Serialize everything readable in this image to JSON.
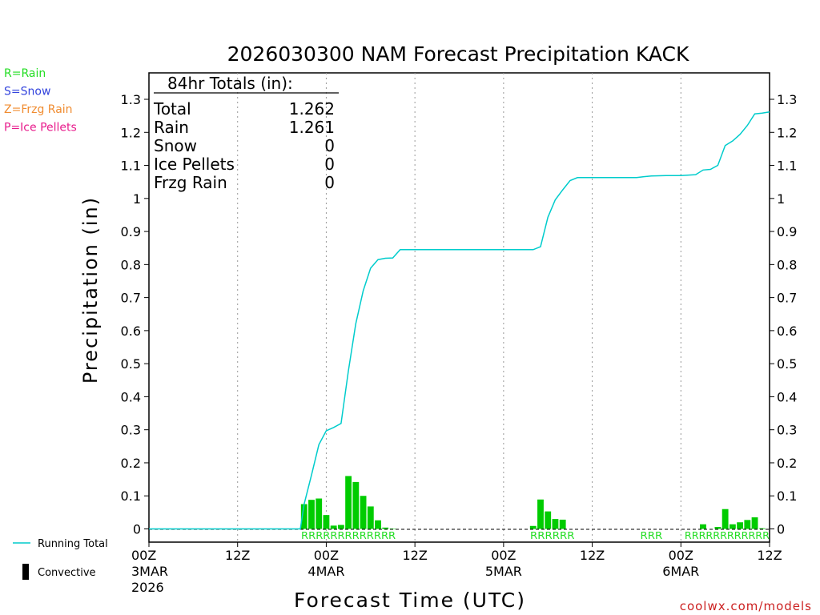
{
  "chart_data": {
    "type": "bar",
    "title": "2026030300 NAM Forecast Precipitation KACK",
    "xlabel": "Forecast Time (UTC)",
    "ylabel": "Precipitation (in)",
    "ylim": [
      -0.04,
      1.38
    ],
    "xlim_hours": [
      0,
      84
    ],
    "y_ticks": [
      "0",
      "0.1",
      "0.2",
      "0.3",
      "0.4",
      "0.5",
      "0.6",
      "0.7",
      "0.8",
      "0.9",
      "1",
      "1.1",
      "1.2",
      "1.3"
    ],
    "x_ticks": [
      {
        "hour": 0,
        "label": "00Z",
        "sub": "3MAR",
        "sub2": "2026"
      },
      {
        "hour": 12,
        "label": "12Z",
        "sub": "",
        "sub2": ""
      },
      {
        "hour": 24,
        "label": "00Z",
        "sub": "4MAR",
        "sub2": ""
      },
      {
        "hour": 36,
        "label": "12Z",
        "sub": "",
        "sub2": ""
      },
      {
        "hour": 48,
        "label": "00Z",
        "sub": "5MAR",
        "sub2": ""
      },
      {
        "hour": 60,
        "label": "12Z",
        "sub": "",
        "sub2": ""
      },
      {
        "hour": 72,
        "label": "00Z",
        "sub": "6MAR",
        "sub2": ""
      },
      {
        "hour": 84,
        "label": "12Z",
        "sub": "",
        "sub2": ""
      }
    ],
    "bar_width_hours": 0.85,
    "hourly_precip": {
      "hours": [
        21,
        22,
        23,
        24,
        25,
        26,
        27,
        28,
        29,
        30,
        31,
        32,
        33,
        52,
        53,
        54,
        55,
        56,
        75,
        77,
        78,
        79,
        80,
        81,
        82,
        83
      ],
      "values": [
        0.075,
        0.088,
        0.092,
        0.042,
        0.01,
        0.012,
        0.16,
        0.142,
        0.1,
        0.068,
        0.026,
        0.004,
        0.001,
        0.009,
        0.089,
        0.053,
        0.03,
        0.028,
        0.014,
        0.006,
        0.06,
        0.014,
        0.02,
        0.027,
        0.035,
        0.002
      ]
    },
    "running_total": {
      "hours": [
        0,
        20.5,
        21,
        22,
        23,
        24,
        25,
        26,
        27,
        28,
        29,
        30,
        31,
        32,
        33,
        34,
        52,
        53,
        54,
        55,
        56,
        57,
        58,
        59,
        60,
        63,
        66,
        67,
        68,
        70,
        72,
        74,
        75,
        76,
        77,
        78,
        79,
        80,
        81,
        82,
        83,
        84
      ],
      "values": [
        0,
        0,
        0.075,
        0.163,
        0.255,
        0.297,
        0.307,
        0.319,
        0.479,
        0.621,
        0.721,
        0.789,
        0.815,
        0.819,
        0.82,
        0.845,
        0.845,
        0.854,
        0.943,
        0.996,
        1.026,
        1.054,
        1.063,
        1.063,
        1.063,
        1.063,
        1.063,
        1.066,
        1.068,
        1.069,
        1.069,
        1.072,
        1.086,
        1.088,
        1.1,
        1.16,
        1.174,
        1.194,
        1.221,
        1.256,
        1.258,
        1.262
      ]
    },
    "ptype_marks": [
      {
        "from_hour": 20.6,
        "to_hour": 33.4,
        "letter": "R",
        "count": 13
      },
      {
        "from_hour": 51.6,
        "to_hour": 57.6,
        "letter": "R",
        "count": 6
      },
      {
        "from_hour": 66.5,
        "to_hour": 69.5,
        "letter": "R",
        "count": 3
      },
      {
        "from_hour": 72.5,
        "to_hour": 84.0,
        "letter": "R",
        "count": 12
      }
    ],
    "totals_box": {
      "header": "84hr Totals (in):",
      "rows": [
        {
          "label": "Total",
          "value": "1.262"
        },
        {
          "label": "Rain",
          "value": "1.261"
        },
        {
          "label": "Snow",
          "value": "0"
        },
        {
          "label": "Ice Pellets",
          "value": "0"
        },
        {
          "label": "Frzg Rain",
          "value": "0"
        }
      ]
    },
    "ptype_legend": [
      {
        "text": "R=Rain",
        "color": "#22dd22"
      },
      {
        "text": "S=Snow",
        "color": "#3344dd"
      },
      {
        "text": "Z=Frzg Rain",
        "color": "#f08c30"
      },
      {
        "text": "P=Ice Pellets",
        "color": "#e81c8c"
      }
    ],
    "series_legend": [
      {
        "text": "Running Total",
        "kind": "line",
        "color": "#00cccc"
      },
      {
        "text": "Convective",
        "kind": "bar",
        "color": "#000000"
      }
    ],
    "colors": {
      "bars": "#00cc00",
      "running_total": "#00cccc",
      "ptype_letters": "#22dd22",
      "grid": "#999999",
      "axis": "#000000",
      "credit": "#cc2222"
    },
    "credit": "coolwx.com/models"
  }
}
